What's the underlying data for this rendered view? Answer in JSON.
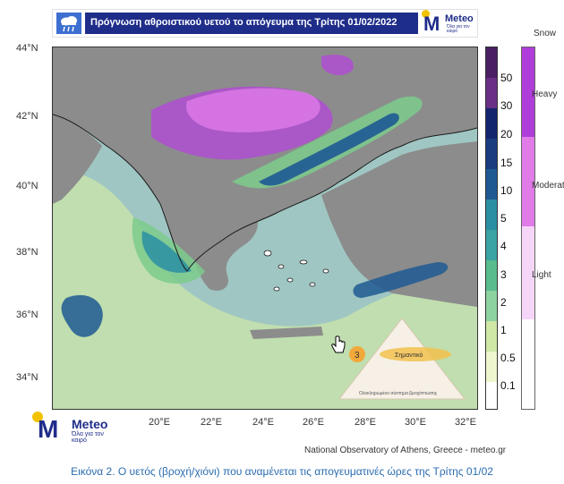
{
  "header": {
    "title": "Πρόγνωση αθροιστικού υετού το απόγευμα της Τρίτης 01/02/2022",
    "cloud_icon": "rain-cloud-icon",
    "logo_brand": "Meteo",
    "logo_tagline": "Όλα για τον καιρό"
  },
  "map": {
    "lat_labels": [
      "44°N",
      "42°N",
      "40°N",
      "38°N",
      "36°N",
      "34°N"
    ],
    "lon_labels": [
      "20°E",
      "22°E",
      "24°E",
      "26°E",
      "28°E",
      "30°E",
      "32°E"
    ],
    "colors": {
      "sea": "#9fc6c2",
      "land": "#8c8c8c",
      "light_green": "#cfe8a6",
      "green": "#7ccb8c",
      "teal": "#2b8fa3",
      "blue": "#1f5a93",
      "purple": "#b24ad6",
      "magenta": "#e07be8",
      "border": "#1a1a1a"
    },
    "cursor_icon": "hand-cursor-icon"
  },
  "colorbar": {
    "labels": [
      "50",
      "30",
      "20",
      "15",
      "10",
      "5",
      "4",
      "3",
      "2",
      "1",
      "0.5",
      "0.1"
    ],
    "colors": [
      "#4a1f63",
      "#6a2f87",
      "#14256e",
      "#1a3d80",
      "#1f5a93",
      "#2b8fa3",
      "#3aa3a3",
      "#59bc8f",
      "#8dd3a0",
      "#cfe8a6",
      "#eef6d0",
      "#ffffff"
    ]
  },
  "snow_legend": {
    "title": "Snow",
    "levels": [
      "Heavy",
      "Moderate",
      "Light"
    ],
    "colors": [
      "#b03dd9",
      "#e07be8",
      "#f6d6f8"
    ]
  },
  "risk_legend": {
    "level": "3",
    "label": "Σημαντικό",
    "footer": "Ολοκληρωμένο σύστημα βροχόπτωσης"
  },
  "bottom_logo": {
    "brand": "Meteo",
    "tagline": "Όλα για τον καιρό"
  },
  "credit": "National Observatory of Athens, Greece - meteo.gr",
  "caption": "Εικόνα 2. Ο υετός (βροχή/χιόνι) που αναμένεται τις απογευματινές ώρες της Τρίτης 01/02"
}
